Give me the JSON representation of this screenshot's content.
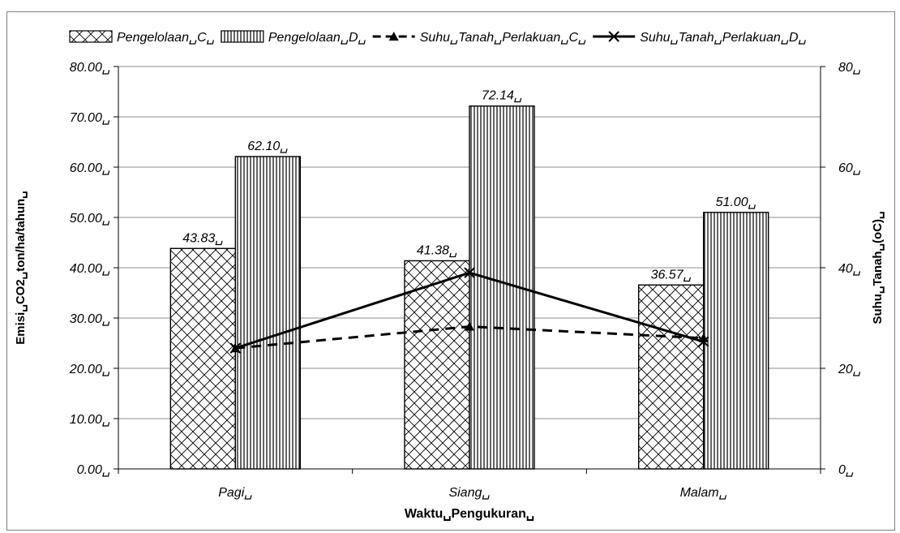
{
  "chart_data": {
    "type": "bar",
    "title": "",
    "xlabel": "Waktu␣Pengukuran␣",
    "ylabel": "Emisi␣CO2␣ton/ha/tahun␣",
    "y2label": "Suhu␣Tanah␣(oC)␣",
    "categories": [
      "Pagi␣",
      "Siang␣",
      "Malam␣"
    ],
    "ylim": [
      0,
      80
    ],
    "y2lim": [
      0,
      80
    ],
    "yticks": [
      "0.00␣",
      "10.00␣",
      "20.00␣",
      "30.00␣",
      "40.00␣",
      "50.00␣",
      "60.00␣",
      "70.00␣",
      "80.00␣"
    ],
    "y2ticks": [
      "0␣",
      "20␣",
      "40␣",
      "60␣",
      "80␣"
    ],
    "grid": true,
    "legend_position": "top",
    "series": [
      {
        "name": "Pengelolaan␣C␣",
        "type": "bar",
        "axis": "left",
        "pattern": "diagonal-cross-hatch",
        "values": [
          43.83,
          41.38,
          36.57
        ],
        "labels": [
          "43.83␣",
          "41.38␣",
          "36.57␣"
        ]
      },
      {
        "name": "Pengelolaan␣D␣",
        "type": "bar",
        "axis": "left",
        "pattern": "vertical-lines",
        "values": [
          62.1,
          72.14,
          51.0
        ],
        "labels": [
          "62.10␣",
          "72.14␣",
          "51.00␣"
        ]
      },
      {
        "name": "Suhu␣Tanah␣Perlakuan␣C␣",
        "type": "line",
        "axis": "right",
        "style": "dashed",
        "marker": "triangle",
        "values": [
          24,
          28.3,
          26
        ]
      },
      {
        "name": "Suhu␣Tanah␣Perlakuan␣D␣",
        "type": "line",
        "axis": "right",
        "style": "solid",
        "marker": "x",
        "values": [
          24,
          39,
          25.3
        ]
      }
    ],
    "colors": {
      "ink": "#000000",
      "grid": "#8c8c8c",
      "frame": "#7f7f7f"
    }
  }
}
